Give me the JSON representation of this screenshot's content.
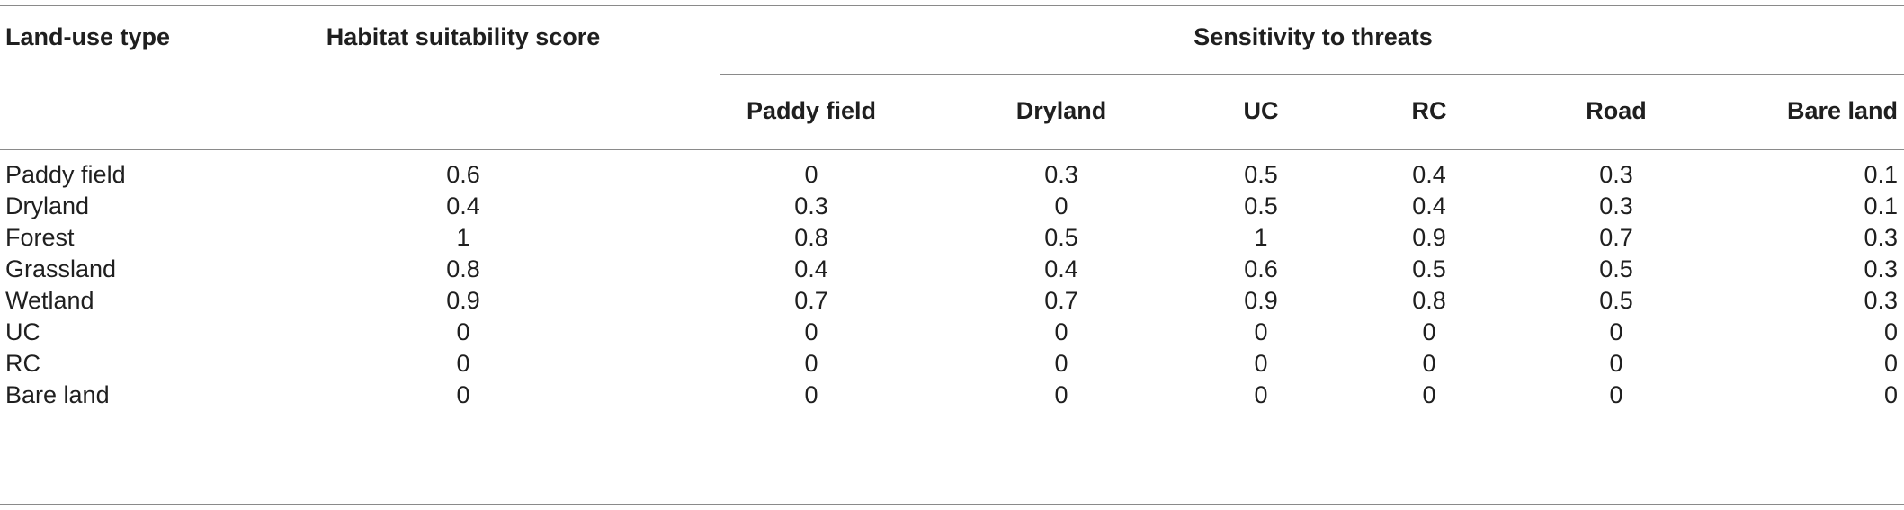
{
  "table": {
    "headers": {
      "land_use_type": "Land-use type",
      "habitat_suitability": "Habitat suitability score",
      "sensitivity_group": "Sensitivity to threats",
      "threats": [
        "Paddy field",
        "Dryland",
        "UC",
        "RC",
        "Road",
        "Bare land"
      ]
    },
    "rows": [
      {
        "type": "Paddy field",
        "habitat": "0.6",
        "values": [
          "0",
          "0.3",
          "0.5",
          "0.4",
          "0.3",
          "0.1"
        ]
      },
      {
        "type": "Dryland",
        "habitat": "0.4",
        "values": [
          "0.3",
          "0",
          "0.5",
          "0.4",
          "0.3",
          "0.1"
        ]
      },
      {
        "type": "Forest",
        "habitat": "1",
        "values": [
          "0.8",
          "0.5",
          "1",
          "0.9",
          "0.7",
          "0.3"
        ]
      },
      {
        "type": "Grassland",
        "habitat": "0.8",
        "values": [
          "0.4",
          "0.4",
          "0.6",
          "0.5",
          "0.5",
          "0.3"
        ]
      },
      {
        "type": "Wetland",
        "habitat": "0.9",
        "values": [
          "0.7",
          "0.7",
          "0.9",
          "0.8",
          "0.5",
          "0.3"
        ]
      },
      {
        "type": "UC",
        "habitat": "0",
        "values": [
          "0",
          "0",
          "0",
          "0",
          "0",
          "0"
        ]
      },
      {
        "type": "RC",
        "habitat": "0",
        "values": [
          "0",
          "0",
          "0",
          "0",
          "0",
          "0"
        ]
      },
      {
        "type": "Bare land",
        "habitat": "0",
        "values": [
          "0",
          "0",
          "0",
          "0",
          "0",
          "0"
        ]
      }
    ]
  }
}
